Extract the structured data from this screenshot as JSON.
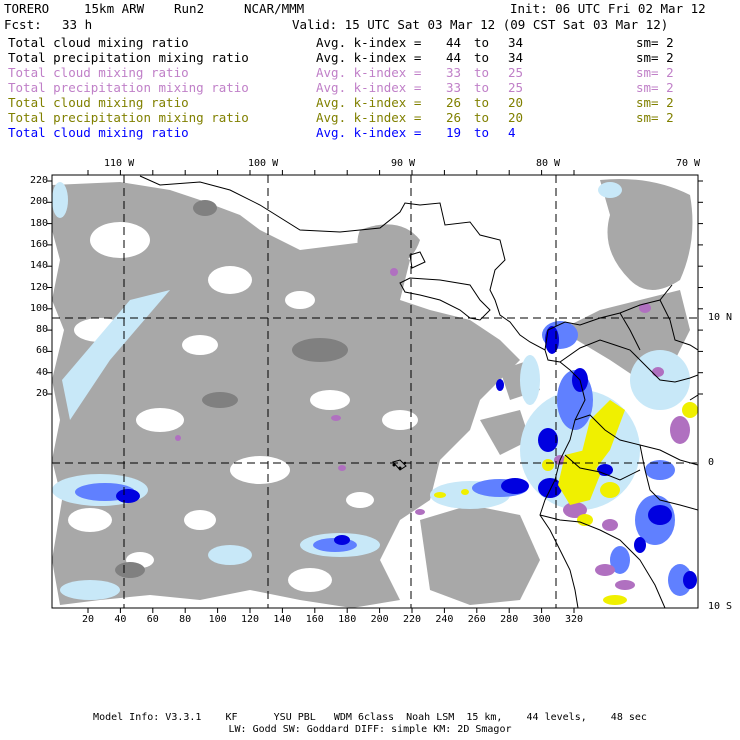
{
  "header": {
    "model": "TORERO",
    "resolution": "15km ARW",
    "run": "Run2",
    "org": "NCAR/MMM",
    "init": "Init: 06 UTC Fri 02 Mar 12",
    "fcst_label": "Fcst:",
    "fcst_value": "33 h",
    "valid": "Valid: 15 UTC Sat 03 Mar 12 (09 CST Sat 03 Mar 12)"
  },
  "legend": [
    {
      "field": "Total cloud mixing ratio",
      "label": "Avg. k-index =",
      "from": "44",
      "to_word": "to",
      "to": "34",
      "sm": "sm= 2",
      "color": "#000000"
    },
    {
      "field": "Total precipitation mixing ratio",
      "label": "Avg. k-index =",
      "from": "44",
      "to_word": "to",
      "to": "34",
      "sm": "sm= 2",
      "color": "#000000"
    },
    {
      "field": "Total cloud mixing ratio",
      "label": "Avg. k-index =",
      "from": "33",
      "to_word": "to",
      "to": "25",
      "sm": "sm= 2",
      "color": "#c080c8"
    },
    {
      "field": "Total precipitation mixing ratio",
      "label": "Avg. k-index =",
      "from": "33",
      "to_word": "to",
      "to": "25",
      "sm": "sm= 2",
      "color": "#c080c8"
    },
    {
      "field": "Total cloud mixing ratio",
      "label": "Avg. k-index =",
      "from": "26",
      "to_word": "to",
      "to": "20",
      "sm": "sm= 2",
      "color": "#808000"
    },
    {
      "field": "Total precipitation mixing ratio",
      "label": "Avg. k-index =",
      "from": "26",
      "to_word": "to",
      "to": "20",
      "sm": "sm= 2",
      "color": "#808000"
    },
    {
      "field": "Total cloud mixing ratio",
      "label": "Avg. k-index =",
      "from": "19",
      "to_word": "to",
      "to": "4",
      "sm": "",
      "color": "#0000ff"
    }
  ],
  "axes": {
    "top_ticks": [
      "110 W",
      "100 W",
      "90 W",
      "80 W",
      "70 W"
    ],
    "right_ticks": [
      "10 N",
      "0",
      "10 S"
    ],
    "left_ticks": [
      "220",
      "200",
      "180",
      "160",
      "140",
      "120",
      "100",
      "80",
      "60",
      "40",
      "20"
    ],
    "bottom_ticks": [
      "20",
      "40",
      "60",
      "80",
      "100",
      "120",
      "140",
      "160",
      "180",
      "200",
      "220",
      "240",
      "260",
      "280",
      "300",
      "320"
    ]
  },
  "footer": {
    "line1": "Model Info: V3.3.1    KF      YSU PBL   WDM 6class  Noah LSM  15 km,    44 levels,    48 sec",
    "line2": "LW: Godd SW: Goddard DIFF: simple KM: 2D Smagor"
  },
  "colors": {
    "gray_cloud": "#a8a8a8",
    "dark_gray": "#808080",
    "light_blue": "#c8e8f8",
    "mid_blue": "#6080ff",
    "deep_blue": "#0000e0",
    "purple": "#b070c0",
    "yellow": "#f0f000"
  }
}
